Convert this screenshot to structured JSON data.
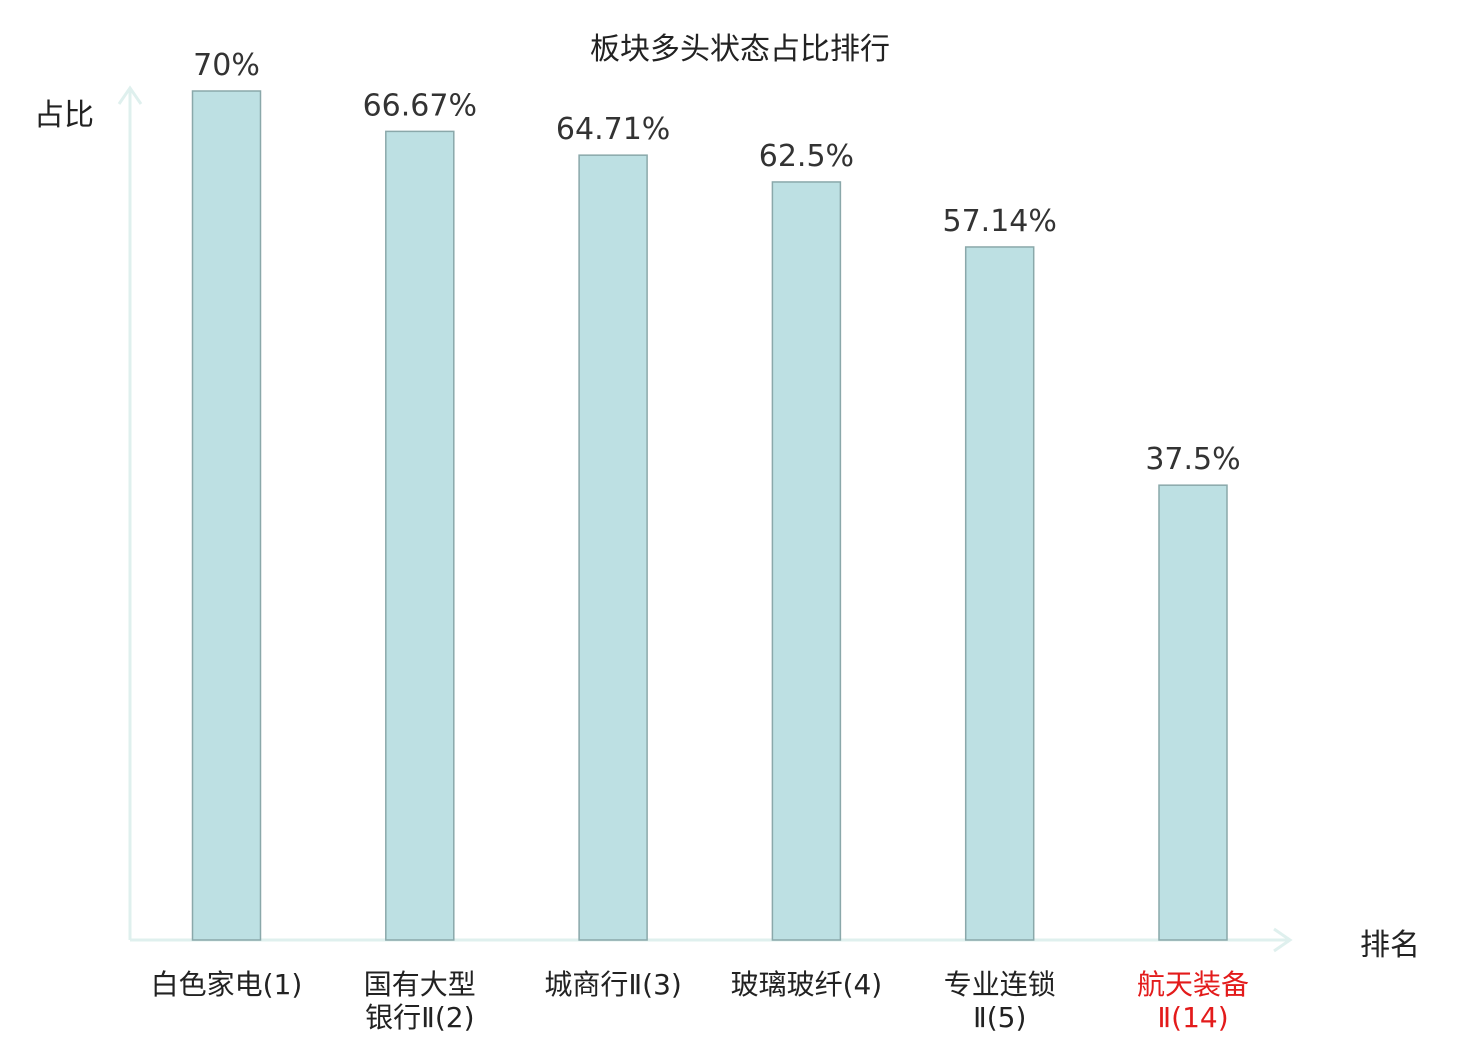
{
  "chart_data": {
    "type": "bar",
    "title": "板块多头状态占比排行",
    "ylabel": "占比",
    "xlabel": "排名",
    "ylim": [
      0,
      70
    ],
    "grid": false,
    "categories": [
      {
        "lines": [
          "白色家电(1)"
        ],
        "highlight": false
      },
      {
        "lines": [
          "国有大型",
          "银行Ⅱ(2)"
        ],
        "highlight": false
      },
      {
        "lines": [
          "城商行Ⅱ(3)"
        ],
        "highlight": false
      },
      {
        "lines": [
          "玻璃玻纤(4)"
        ],
        "highlight": false
      },
      {
        "lines": [
          "专业连锁",
          "Ⅱ(5)"
        ],
        "highlight": false
      },
      {
        "lines": [
          "航天装备",
          "Ⅱ(14)"
        ],
        "highlight": true
      }
    ],
    "values": [
      70,
      66.67,
      64.71,
      62.5,
      57.14,
      37.5
    ],
    "value_labels": [
      "70%",
      "66.67%",
      "64.71%",
      "62.5%",
      "57.14%",
      "37.5%"
    ],
    "colors": {
      "bar_fill": "#bde0e3",
      "bar_stroke": "#8aa8aa",
      "axis": "#dff0ee",
      "highlight_text": "#e31b1b",
      "text": "#222222"
    }
  }
}
